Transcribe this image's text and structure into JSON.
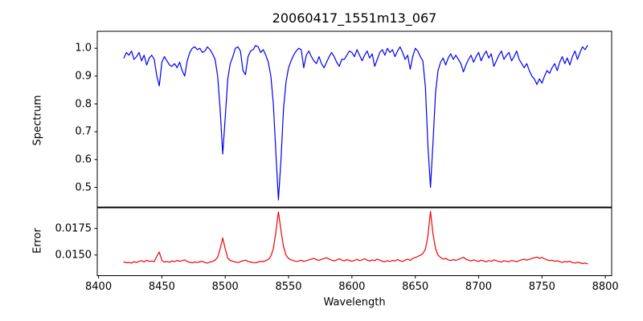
{
  "chart_data": {
    "type": "line",
    "title": "20060417_1551m13_067",
    "xlabel": "Wavelength",
    "grid": false,
    "legend": null,
    "xlim": [
      8399,
      8805
    ],
    "x_ticks": [
      8400,
      8450,
      8500,
      8550,
      8600,
      8650,
      8700,
      8750,
      8800
    ],
    "x_start": 8420,
    "x_step": 2,
    "panels": [
      {
        "name": "spectrum",
        "ylabel": "Spectrum",
        "ylim": [
          0.428,
          1.061
        ],
        "yticks": [
          1.0,
          0.9,
          0.8,
          0.7,
          0.6,
          0.5
        ],
        "ytick_labels": [
          "1.0",
          "0.9",
          "0.8",
          "0.7",
          "0.6",
          "0.5"
        ],
        "line_color": "#0000ee",
        "values": [
          0.965,
          0.985,
          0.975,
          0.99,
          0.96,
          0.97,
          0.985,
          0.955,
          0.975,
          0.94,
          0.965,
          0.975,
          0.96,
          0.9,
          0.865,
          0.95,
          0.97,
          0.955,
          0.94,
          0.935,
          0.945,
          0.93,
          0.95,
          0.92,
          0.9,
          0.955,
          0.985,
          1.0,
          1.005,
          0.995,
          1.0,
          0.985,
          0.99,
          1.005,
          0.995,
          0.98,
          0.96,
          0.9,
          0.78,
          0.62,
          0.75,
          0.89,
          0.945,
          0.97,
          1.0,
          1.005,
          0.99,
          0.92,
          0.905,
          0.97,
          0.99,
          0.995,
          1.01,
          1.005,
          0.985,
          0.995,
          0.975,
          0.95,
          0.9,
          0.8,
          0.62,
          0.455,
          0.6,
          0.78,
          0.88,
          0.93,
          0.955,
          0.975,
          0.99,
          1.0,
          0.995,
          0.93,
          0.975,
          0.99,
          0.97,
          0.955,
          0.945,
          0.97,
          0.945,
          0.93,
          0.95,
          0.97,
          0.985,
          0.97,
          0.95,
          0.935,
          0.96,
          0.96,
          0.975,
          0.99,
          0.985,
          0.97,
          0.995,
          0.975,
          0.955,
          0.975,
          0.99,
          0.965,
          0.98,
          0.935,
          0.96,
          0.985,
          0.995,
          0.975,
          1.0,
          0.985,
          0.995,
          0.97,
          0.99,
          1.005,
          0.985,
          0.96,
          0.975,
          0.925,
          0.97,
          1.0,
          0.99,
          0.97,
          0.955,
          0.86,
          0.65,
          0.5,
          0.66,
          0.84,
          0.92,
          0.95,
          0.965,
          0.94,
          0.965,
          0.98,
          0.96,
          0.975,
          0.96,
          0.945,
          0.915,
          0.94,
          0.96,
          0.975,
          0.95,
          0.97,
          0.985,
          0.955,
          0.975,
          0.99,
          0.965,
          0.98,
          0.935,
          0.955,
          0.975,
          0.99,
          0.96,
          0.975,
          0.985,
          0.955,
          0.97,
          0.99,
          0.96,
          0.945,
          0.93,
          0.945,
          0.92,
          0.9,
          0.89,
          0.87,
          0.89,
          0.875,
          0.9,
          0.92,
          0.91,
          0.93,
          0.945,
          0.92,
          0.95,
          0.97,
          0.945,
          0.965,
          0.94,
          0.97,
          0.99,
          0.96,
          0.985,
          1.005,
          0.995,
          1.01
        ]
      },
      {
        "name": "error",
        "ylabel": "Error",
        "ylim": [
          0.01307,
          0.01947
        ],
        "yticks": [
          0.0175,
          0.015
        ],
        "ytick_labels": [
          "0.0175",
          "0.0150"
        ],
        "line_color": "#ee0000",
        "values": [
          0.01435,
          0.01428,
          0.01432,
          0.01425,
          0.01438,
          0.0143,
          0.01442,
          0.01448,
          0.01435,
          0.01452,
          0.0144,
          0.01445,
          0.01438,
          0.0149,
          0.01528,
          0.0145,
          0.01435,
          0.0144,
          0.01432,
          0.01445,
          0.01438,
          0.0145,
          0.01442,
          0.01448,
          0.01455,
          0.0144,
          0.01432,
          0.01428,
          0.01435,
          0.0143,
          0.01438,
          0.01442,
          0.0143,
          0.01425,
          0.01435,
          0.0144,
          0.01452,
          0.0148,
          0.0156,
          0.0166,
          0.0156,
          0.01472,
          0.0145,
          0.01442,
          0.01435,
          0.0143,
          0.01438,
          0.01448,
          0.01452,
          0.0144,
          0.01435,
          0.0143,
          0.01428,
          0.01435,
          0.01442,
          0.01438,
          0.01448,
          0.0146,
          0.0149,
          0.0156,
          0.0172,
          0.01905,
          0.0173,
          0.0158,
          0.015,
          0.01468,
          0.01455,
          0.01448,
          0.0144,
          0.01445,
          0.01452,
          0.0144,
          0.01448,
          0.01455,
          0.01462,
          0.0147,
          0.01458,
          0.0145,
          0.0146,
          0.01468,
          0.01475,
          0.01462,
          0.01452,
          0.01445,
          0.01455,
          0.01465,
          0.01452,
          0.01445,
          0.01458,
          0.0145,
          0.01442,
          0.0145,
          0.0146,
          0.01448,
          0.01455,
          0.01465,
          0.01452,
          0.01445,
          0.01455,
          0.01448,
          0.01462,
          0.01452,
          0.01442,
          0.01438,
          0.01448,
          0.0144,
          0.0145,
          0.01445,
          0.01458,
          0.01448,
          0.0144,
          0.01452,
          0.01462,
          0.0145,
          0.0147,
          0.01478,
          0.01488,
          0.01498,
          0.01515,
          0.01555,
          0.0168,
          0.0191,
          0.017,
          0.0156,
          0.015,
          0.01478,
          0.01462,
          0.0147,
          0.01455,
          0.01448,
          0.01458,
          0.0145,
          0.0146,
          0.01468,
          0.0148,
          0.01462,
          0.01452,
          0.01445,
          0.01455,
          0.01448,
          0.0144,
          0.01452,
          0.01445,
          0.01438,
          0.01448,
          0.01442,
          0.01455,
          0.01448,
          0.0144,
          0.01435,
          0.01448,
          0.01442,
          0.01438,
          0.0145,
          0.01445,
          0.01438,
          0.01448,
          0.01455,
          0.01462,
          0.01452,
          0.0146,
          0.01468,
          0.01475,
          0.01482,
          0.0147,
          0.01478,
          0.01465,
          0.01455,
          0.01448,
          0.01452,
          0.01442,
          0.01448,
          0.01438,
          0.01432,
          0.0144,
          0.01435,
          0.01442,
          0.0143,
          0.01425,
          0.01432,
          0.01428,
          0.0142,
          0.01425,
          0.01418
        ]
      }
    ]
  }
}
